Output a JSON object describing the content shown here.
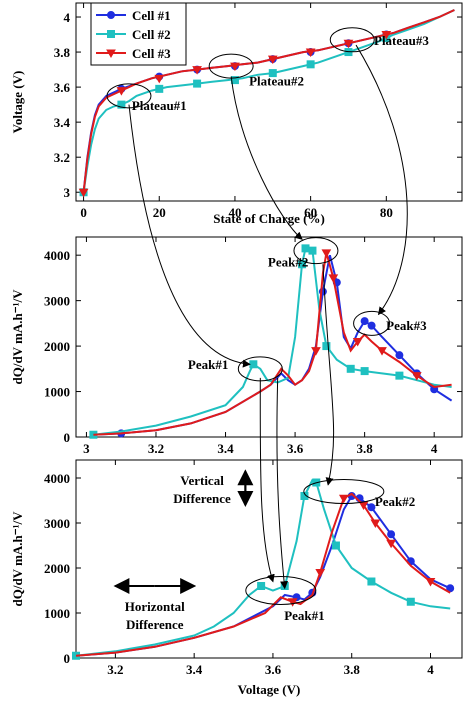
{
  "colors": {
    "cell1": "#1f2ee0",
    "cell2": "#1fc0c0",
    "cell3": "#e01b1b"
  },
  "chart_data": [
    {
      "type": "line",
      "xlabel": "State of Charge (%)",
      "ylabel": "Voltage (V)",
      "xlim": [
        -2,
        100
      ],
      "ylim": [
        2.95,
        4.08
      ],
      "xticks": [
        0,
        20,
        40,
        60,
        80
      ],
      "yticks": [
        3,
        3.2,
        3.4,
        3.6,
        3.8,
        4
      ],
      "xtick_labels": [
        "0",
        "20",
        "40",
        "60",
        "80"
      ],
      "ytick_labels": [
        "3",
        "3.2",
        "3.4",
        "3.6",
        "3.8",
        "4"
      ],
      "grid": false,
      "legend": "top-left",
      "series": [
        {
          "name": "Cell #1",
          "color": "cell1",
          "marker": "circle",
          "x": [
            0,
            1,
            2,
            3,
            4,
            6,
            8,
            10,
            14,
            18,
            22,
            26,
            30,
            34,
            38,
            42,
            46,
            50,
            54,
            58,
            62,
            66,
            70,
            74,
            78,
            82,
            86,
            90,
            94,
            98
          ],
          "y": [
            3.0,
            3.2,
            3.34,
            3.44,
            3.5,
            3.55,
            3.57,
            3.59,
            3.62,
            3.65,
            3.67,
            3.69,
            3.7,
            3.71,
            3.72,
            3.73,
            3.74,
            3.76,
            3.78,
            3.8,
            3.81,
            3.83,
            3.85,
            3.87,
            3.89,
            3.91,
            3.94,
            3.97,
            4.0,
            4.04
          ],
          "marker_x": [
            0,
            10,
            20,
            30,
            40,
            50,
            60,
            70,
            80
          ],
          "marker_y": [
            3.0,
            3.59,
            3.66,
            3.7,
            3.72,
            3.76,
            3.8,
            3.85,
            3.9
          ]
        },
        {
          "name": "Cell #2",
          "color": "cell2",
          "marker": "square",
          "x": [
            0,
            1,
            2,
            3,
            4,
            6,
            8,
            10,
            12,
            14,
            18,
            22,
            26,
            30,
            34,
            38,
            42,
            46,
            50,
            54,
            58,
            62,
            66,
            70,
            74,
            78,
            82,
            86,
            90,
            94,
            98
          ],
          "y": [
            3.0,
            3.15,
            3.27,
            3.36,
            3.42,
            3.47,
            3.49,
            3.5,
            3.52,
            3.55,
            3.58,
            3.6,
            3.61,
            3.62,
            3.63,
            3.64,
            3.65,
            3.67,
            3.68,
            3.7,
            3.72,
            3.74,
            3.77,
            3.8,
            3.83,
            3.86,
            3.9,
            3.93,
            3.96,
            4.0,
            4.04
          ],
          "marker_x": [
            0,
            10,
            20,
            30,
            40,
            50,
            60,
            70,
            80
          ],
          "marker_y": [
            3.0,
            3.5,
            3.59,
            3.62,
            3.64,
            3.68,
            3.73,
            3.8,
            3.88
          ]
        },
        {
          "name": "Cell #3",
          "color": "cell3",
          "marker": "triangle",
          "x": [
            0,
            1,
            2,
            3,
            4,
            6,
            8,
            10,
            14,
            18,
            22,
            26,
            30,
            34,
            38,
            42,
            46,
            50,
            54,
            58,
            62,
            66,
            70,
            74,
            78,
            82,
            86,
            90,
            94,
            98
          ],
          "y": [
            3.0,
            3.19,
            3.33,
            3.43,
            3.49,
            3.54,
            3.56,
            3.58,
            3.62,
            3.65,
            3.67,
            3.69,
            3.7,
            3.71,
            3.72,
            3.73,
            3.74,
            3.76,
            3.78,
            3.8,
            3.81,
            3.83,
            3.85,
            3.87,
            3.89,
            3.91,
            3.94,
            3.97,
            4.0,
            4.04
          ],
          "marker_x": [
            0,
            10,
            20,
            30,
            40,
            50,
            60,
            70,
            80
          ],
          "marker_y": [
            3.0,
            3.58,
            3.65,
            3.7,
            3.72,
            3.76,
            3.8,
            3.85,
            3.9
          ]
        }
      ],
      "annotations": [
        {
          "text": "Plateau#1",
          "x": 20,
          "y": 3.47,
          "ellipse_cx": 12,
          "ellipse_cy": 3.55
        },
        {
          "text": "Plateau#2",
          "x": 51,
          "y": 3.61,
          "ellipse_cx": 39,
          "ellipse_cy": 3.72
        },
        {
          "text": "Plateau#3",
          "x": 84,
          "y": 3.84,
          "ellipse_cx": 71,
          "ellipse_cy": 3.87
        }
      ]
    },
    {
      "type": "line",
      "xlabel": "",
      "ylabel": "dQ/dV mA.h⁻¹/V",
      "xlim": [
        2.97,
        4.08
      ],
      "ylim": [
        0,
        4400
      ],
      "xticks": [
        3,
        3.2,
        3.4,
        3.6,
        3.8,
        4
      ],
      "yticks": [
        0,
        1000,
        2000,
        3000,
        4000
      ],
      "xtick_labels": [
        "3",
        "3.2",
        "3.4",
        "3.6",
        "3.8",
        "4"
      ],
      "ytick_labels": [
        "0",
        "1000",
        "2000",
        "3000",
        "4000"
      ],
      "grid": false,
      "series": [
        {
          "name": "Cell #1",
          "color": "cell1",
          "marker": "circle",
          "x": [
            3.02,
            3.1,
            3.2,
            3.3,
            3.4,
            3.5,
            3.53,
            3.56,
            3.58,
            3.6,
            3.62,
            3.64,
            3.66,
            3.68,
            3.7,
            3.72,
            3.74,
            3.76,
            3.78,
            3.8,
            3.82,
            3.85,
            3.9,
            3.95,
            4.0,
            4.05
          ],
          "y": [
            50,
            80,
            150,
            300,
            550,
            1000,
            1150,
            1400,
            1250,
            1150,
            1250,
            1500,
            2000,
            3200,
            4000,
            3400,
            2200,
            1950,
            2300,
            2550,
            2450,
            2200,
            1800,
            1400,
            1050,
            800
          ],
          "marker_x": [
            3.1,
            3.68,
            3.72,
            3.8,
            3.82,
            3.9,
            3.95,
            4.0
          ],
          "marker_y": [
            80,
            3200,
            3400,
            2550,
            2450,
            1800,
            1400,
            1050
          ]
        },
        {
          "name": "Cell #2",
          "color": "cell2",
          "marker": "square",
          "x": [
            3.02,
            3.1,
            3.2,
            3.3,
            3.4,
            3.45,
            3.47,
            3.48,
            3.5,
            3.52,
            3.55,
            3.58,
            3.6,
            3.62,
            3.63,
            3.65,
            3.67,
            3.69,
            3.72,
            3.76,
            3.8,
            3.85,
            3.9,
            3.95,
            4.0,
            4.05
          ],
          "y": [
            50,
            120,
            250,
            450,
            700,
            1100,
            1450,
            1600,
            1500,
            1250,
            1200,
            1300,
            2200,
            3800,
            4150,
            4100,
            2800,
            2000,
            1700,
            1500,
            1450,
            1400,
            1350,
            1250,
            1150,
            1100
          ],
          "marker_x": [
            3.02,
            3.48,
            3.62,
            3.63,
            3.65,
            3.69,
            3.76,
            3.8,
            3.9
          ],
          "marker_y": [
            50,
            1600,
            3800,
            4150,
            4100,
            2000,
            1500,
            1450,
            1350
          ]
        },
        {
          "name": "Cell #3",
          "color": "cell3",
          "marker": "triangle",
          "x": [
            3.02,
            3.1,
            3.2,
            3.3,
            3.4,
            3.5,
            3.53,
            3.56,
            3.58,
            3.6,
            3.62,
            3.64,
            3.66,
            3.68,
            3.69,
            3.71,
            3.74,
            3.76,
            3.78,
            3.8,
            3.82,
            3.85,
            3.9,
            3.95,
            4.0,
            4.05
          ],
          "y": [
            50,
            80,
            150,
            300,
            550,
            1000,
            1150,
            1500,
            1350,
            1150,
            1250,
            1450,
            1900,
            3600,
            4050,
            3500,
            2300,
            1900,
            2100,
            2250,
            2100,
            1900,
            1650,
            1350,
            1100,
            1150
          ],
          "marker_x": [
            3.66,
            3.69,
            3.71,
            3.78,
            3.85,
            3.95
          ],
          "marker_y": [
            1900,
            4050,
            3500,
            2100,
            1900,
            1350
          ]
        }
      ],
      "annotations": [
        {
          "text": "Peak#1",
          "x": 3.35,
          "y": 1500
        },
        {
          "text": "Peak#2",
          "x": 3.58,
          "y": 3750
        },
        {
          "text": "Peak#3",
          "x": 3.92,
          "y": 2350
        }
      ]
    },
    {
      "type": "line",
      "xlabel": "Voltage (V)",
      "ylabel": "dQ/dV mA.h⁻¹/V",
      "xlim": [
        3.1,
        4.08
      ],
      "ylim": [
        0,
        4400
      ],
      "xticks": [
        3.2,
        3.4,
        3.6,
        3.8,
        4
      ],
      "yticks": [
        0,
        1000,
        2000,
        3000,
        4000
      ],
      "xtick_labels": [
        "3.2",
        "3.4",
        "3.6",
        "3.8",
        "4"
      ],
      "ytick_labels": [
        "0",
        "1000",
        "2000",
        "3000",
        "4000"
      ],
      "grid": false,
      "series": [
        {
          "name": "Cell #1",
          "color": "cell1",
          "marker": "circle",
          "x": [
            3.1,
            3.2,
            3.3,
            3.4,
            3.5,
            3.6,
            3.63,
            3.66,
            3.68,
            3.7,
            3.72,
            3.75,
            3.78,
            3.8,
            3.82,
            3.85,
            3.9,
            3.95,
            4.0,
            4.05
          ],
          "y": [
            50,
            120,
            250,
            450,
            700,
            1150,
            1400,
            1350,
            1300,
            1450,
            1800,
            2500,
            3300,
            3600,
            3550,
            3350,
            2750,
            2150,
            1750,
            1550
          ],
          "marker_x": [
            3.66,
            3.7,
            3.8,
            3.82,
            3.85,
            3.9,
            3.95,
            4.05
          ],
          "marker_y": [
            1350,
            1450,
            3600,
            3550,
            3350,
            2750,
            2150,
            1550
          ]
        },
        {
          "name": "Cell #2",
          "color": "cell2",
          "marker": "square",
          "x": [
            3.1,
            3.2,
            3.3,
            3.4,
            3.45,
            3.5,
            3.54,
            3.57,
            3.6,
            3.63,
            3.66,
            3.68,
            3.7,
            3.71,
            3.73,
            3.76,
            3.8,
            3.85,
            3.9,
            3.95,
            4.0,
            4.05
          ],
          "y": [
            50,
            150,
            300,
            500,
            700,
            1000,
            1400,
            1600,
            1500,
            1600,
            2600,
            3600,
            3950,
            3900,
            3300,
            2500,
            2000,
            1700,
            1450,
            1250,
            1150,
            1100
          ],
          "marker_x": [
            3.1,
            3.57,
            3.63,
            3.68,
            3.71,
            3.76,
            3.85,
            3.95
          ],
          "marker_y": [
            50,
            1600,
            1600,
            3600,
            3900,
            2500,
            1700,
            1250
          ]
        },
        {
          "name": "Cell #3",
          "color": "cell3",
          "marker": "triangle",
          "x": [
            3.1,
            3.2,
            3.3,
            3.4,
            3.5,
            3.58,
            3.62,
            3.65,
            3.67,
            3.7,
            3.72,
            3.75,
            3.78,
            3.8,
            3.83,
            3.86,
            3.9,
            3.95,
            4.0,
            4.05
          ],
          "y": [
            50,
            120,
            250,
            450,
            700,
            1000,
            1350,
            1250,
            1200,
            1400,
            1900,
            2800,
            3550,
            3650,
            3400,
            3000,
            2550,
            2050,
            1700,
            1450
          ],
          "marker_x": [
            3.65,
            3.72,
            3.78,
            3.83,
            3.86,
            3.9,
            4.0
          ],
          "marker_y": [
            1250,
            1900,
            3550,
            3400,
            3000,
            2550,
            1700
          ]
        }
      ],
      "annotations": [
        {
          "text": "Peak#1",
          "x": 3.68,
          "y": 850
        },
        {
          "text": "Peak#2",
          "x": 3.91,
          "y": 3380
        },
        {
          "text": "Vertical",
          "x": 3.42,
          "y": 3850
        },
        {
          "text": "Difference",
          "x": 3.42,
          "y": 3450
        },
        {
          "text": "Horizontal",
          "x": 3.3,
          "y": 1050
        },
        {
          "text": "Difference",
          "x": 3.3,
          "y": 650
        }
      ]
    }
  ]
}
